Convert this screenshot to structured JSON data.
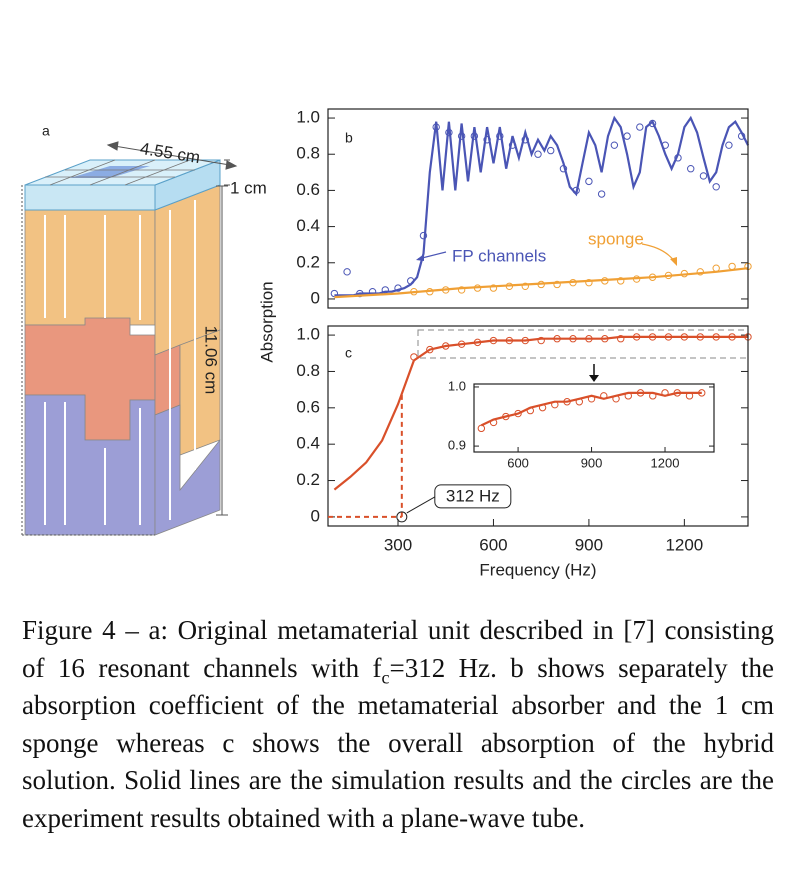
{
  "panel_a": {
    "label": "a",
    "width": "4.55 cm",
    "sponge": "1 cm",
    "height": "11.06 cm"
  },
  "chart_data": [
    {
      "type": "line",
      "panel_label": "b",
      "ylabel": "Absorption",
      "xlim": [
        80,
        1400
      ],
      "ylim": [
        -0.05,
        1.05
      ],
      "yticks": [
        0,
        0.2,
        0.4,
        0.6,
        0.8,
        {
          "value": 1,
          "label": "1.0"
        }
      ],
      "series": [
        {
          "name": "FP channels",
          "color": "#4a55b5",
          "style": "line",
          "x": [
            100,
            120,
            140,
            160,
            180,
            200,
            220,
            240,
            260,
            280,
            300,
            320,
            340,
            360,
            380,
            400,
            420,
            440,
            460,
            480,
            500,
            520,
            540,
            560,
            580,
            600,
            620,
            640,
            660,
            680,
            700,
            720,
            740,
            760,
            780,
            800,
            820,
            840,
            860,
            880,
            900,
            920,
            940,
            960,
            980,
            1000,
            1020,
            1040,
            1060,
            1080,
            1100,
            1120,
            1140,
            1160,
            1180,
            1200,
            1220,
            1240,
            1260,
            1280,
            1300,
            1320,
            1340,
            1360,
            1380,
            1400
          ],
          "values": [
            0.02,
            0.02,
            0.02,
            0.02,
            0.03,
            0.03,
            0.03,
            0.03,
            0.04,
            0.04,
            0.05,
            0.06,
            0.08,
            0.12,
            0.25,
            0.7,
            0.98,
            0.6,
            0.98,
            0.6,
            0.97,
            0.65,
            0.95,
            0.7,
            0.95,
            0.75,
            0.95,
            0.72,
            0.9,
            0.78,
            0.92,
            0.8,
            0.88,
            0.82,
            0.9,
            0.85,
            0.75,
            0.62,
            0.58,
            0.75,
            0.92,
            0.85,
            0.7,
            0.9,
            1.0,
            0.95,
            0.8,
            0.62,
            0.7,
            0.95,
            0.98,
            0.9,
            0.8,
            0.72,
            0.8,
            0.95,
            1.0,
            0.92,
            0.78,
            0.65,
            0.7,
            0.85,
            0.95,
            0.98,
            0.92,
            0.85
          ]
        },
        {
          "color": "#4a55b5",
          "style": "circles",
          "x": [
            100,
            140,
            180,
            220,
            260,
            300,
            340,
            380,
            420,
            460,
            500,
            540,
            580,
            620,
            660,
            700,
            740,
            780,
            820,
            860,
            900,
            940,
            980,
            1020,
            1060,
            1100,
            1140,
            1180,
            1220,
            1260,
            1300,
            1340,
            1380
          ],
          "values": [
            0.03,
            0.15,
            0.03,
            0.04,
            0.05,
            0.06,
            0.1,
            0.35,
            0.95,
            0.92,
            0.9,
            0.9,
            0.88,
            0.9,
            0.85,
            0.88,
            0.8,
            0.82,
            0.72,
            0.6,
            0.65,
            0.58,
            0.85,
            0.9,
            0.95,
            0.97,
            0.85,
            0.78,
            0.72,
            0.68,
            0.62,
            0.85,
            0.9
          ]
        },
        {
          "name": "sponge",
          "color": "#f0a035",
          "style": "line",
          "x": [
            100,
            300,
            500,
            700,
            900,
            1100,
            1300,
            1400
          ],
          "values": [
            0.01,
            0.03,
            0.06,
            0.08,
            0.1,
            0.12,
            0.15,
            0.17
          ]
        },
        {
          "color": "#f0a035",
          "style": "circles",
          "x": [
            350,
            400,
            450,
            500,
            550,
            600,
            650,
            700,
            750,
            800,
            850,
            900,
            950,
            1000,
            1050,
            1100,
            1150,
            1200,
            1250,
            1300,
            1350,
            1400
          ],
          "values": [
            0.04,
            0.04,
            0.05,
            0.05,
            0.06,
            0.06,
            0.07,
            0.07,
            0.08,
            0.08,
            0.09,
            0.09,
            0.1,
            0.1,
            0.11,
            0.12,
            0.13,
            0.14,
            0.15,
            0.17,
            0.18,
            0.18
          ]
        }
      ]
    },
    {
      "type": "line",
      "panel_label": "c",
      "xlabel": "Frequency (Hz)",
      "xlim": [
        80,
        1400
      ],
      "ylim": [
        -0.05,
        1.05
      ],
      "xticks": [
        300,
        600,
        900,
        1200
      ],
      "yticks": [
        0,
        0.2,
        0.4,
        0.6,
        0.8,
        {
          "value": 1,
          "label": "1.0"
        }
      ],
      "annotation": {
        "text": "312 Hz",
        "x": 312
      },
      "series": [
        {
          "color": "#d9502a",
          "style": "line",
          "x": [
            100,
            150,
            200,
            250,
            300,
            350,
            400,
            450,
            500,
            550,
            600,
            650,
            700,
            750,
            800,
            850,
            900,
            950,
            1000,
            1050,
            1100,
            1150,
            1200,
            1250,
            1300,
            1350,
            1400
          ],
          "values": [
            0.15,
            0.22,
            0.3,
            0.42,
            0.62,
            0.86,
            0.92,
            0.94,
            0.95,
            0.96,
            0.97,
            0.97,
            0.97,
            0.98,
            0.98,
            0.98,
            0.98,
            0.98,
            0.99,
            0.99,
            0.99,
            0.99,
            0.99,
            0.99,
            0.99,
            0.99,
            0.99
          ]
        },
        {
          "color": "#d9502a",
          "style": "circles",
          "x": [
            350,
            400,
            450,
            500,
            550,
            600,
            650,
            700,
            750,
            800,
            850,
            900,
            950,
            1000,
            1050,
            1100,
            1150,
            1200,
            1250,
            1300,
            1350,
            1400
          ],
          "values": [
            0.88,
            0.92,
            0.94,
            0.95,
            0.96,
            0.97,
            0.97,
            0.97,
            0.97,
            0.98,
            0.98,
            0.98,
            0.98,
            0.98,
            0.99,
            0.99,
            0.99,
            0.99,
            0.99,
            0.99,
            0.99,
            0.99
          ]
        }
      ]
    },
    {
      "type": "line",
      "xlim": [
        420,
        1400
      ],
      "ylim": [
        0.89,
        1.005
      ],
      "xticks": [
        600,
        900,
        1200
      ],
      "yticks": [
        {
          "value": 0.9,
          "label": "0.9"
        },
        {
          "value": 1,
          "label": "1.0"
        }
      ],
      "series": [
        {
          "color": "#d9502a",
          "style": "line",
          "x": [
            450,
            500,
            550,
            600,
            650,
            700,
            750,
            800,
            850,
            900,
            950,
            1000,
            1050,
            1100,
            1150,
            1200,
            1250,
            1300,
            1350
          ],
          "values": [
            0.935,
            0.945,
            0.95,
            0.955,
            0.965,
            0.97,
            0.975,
            0.975,
            0.98,
            0.985,
            0.98,
            0.985,
            0.99,
            0.99,
            0.99,
            0.985,
            0.99,
            0.99,
            0.99
          ]
        },
        {
          "color": "#d9502a",
          "style": "circles",
          "x": [
            450,
            500,
            550,
            600,
            650,
            700,
            750,
            800,
            850,
            900,
            950,
            1000,
            1050,
            1100,
            1150,
            1200,
            1250,
            1300,
            1350
          ],
          "values": [
            0.93,
            0.94,
            0.95,
            0.955,
            0.96,
            0.965,
            0.97,
            0.975,
            0.975,
            0.98,
            0.985,
            0.98,
            0.985,
            0.99,
            0.985,
            0.99,
            0.99,
            0.985,
            0.99
          ]
        }
      ]
    }
  ],
  "caption": [
    "Figure 4 – a: Original metamaterial unit described in [7] consisting of 16 resonant channels with f",
    "c",
    "=312 Hz. b shows separately the absorption coefficient of the metamaterial absorber and the 1 cm sponge whereas c shows the overall absorption of the hybrid solution. Solid lines are the simulation results and the circles are the experiment results obtained with a plane-wave tube."
  ]
}
